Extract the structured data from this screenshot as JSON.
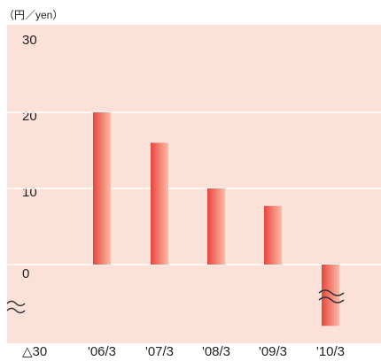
{
  "chart_data": {
    "type": "bar",
    "unit_label": "（円／yen）",
    "categories": [
      "'06/3",
      "'07/3",
      "'08/3",
      "'09/3",
      "'10/3"
    ],
    "values": [
      20,
      16,
      10,
      7.7,
      -21
    ],
    "color": "#e8453c",
    "ylim": [
      -30,
      30
    ],
    "yticks": [
      {
        "value": -30,
        "label": "△30"
      },
      0,
      10,
      20,
      30
    ],
    "grid": true
  }
}
